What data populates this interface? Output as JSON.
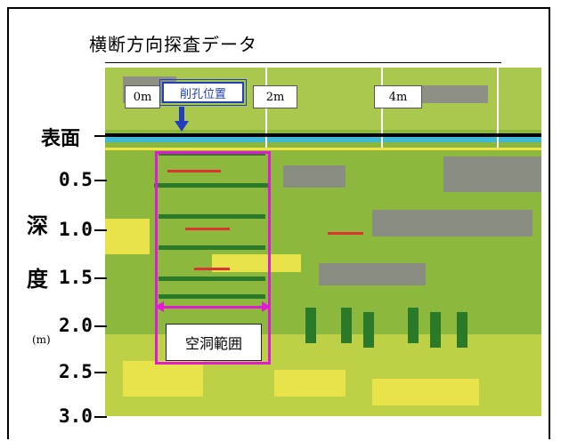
{
  "title": "横断方向探査データ",
  "distance_labels": [
    "0m",
    "2m",
    "4m"
  ],
  "drill_label": "削孔位置",
  "surface_label": "表面",
  "depth_ticks": [
    "0.5",
    "1.0",
    "1.5",
    "2.0",
    "2.5",
    "3.0"
  ],
  "depth_axis": {
    "chars": [
      "深",
      "度"
    ],
    "unit": "(m)"
  },
  "void_label": "空洞範囲",
  "colors": {
    "accent_box": "#e21ad6",
    "drill_marker": "#1f3fbf",
    "radar_base": "#8db83e"
  }
}
